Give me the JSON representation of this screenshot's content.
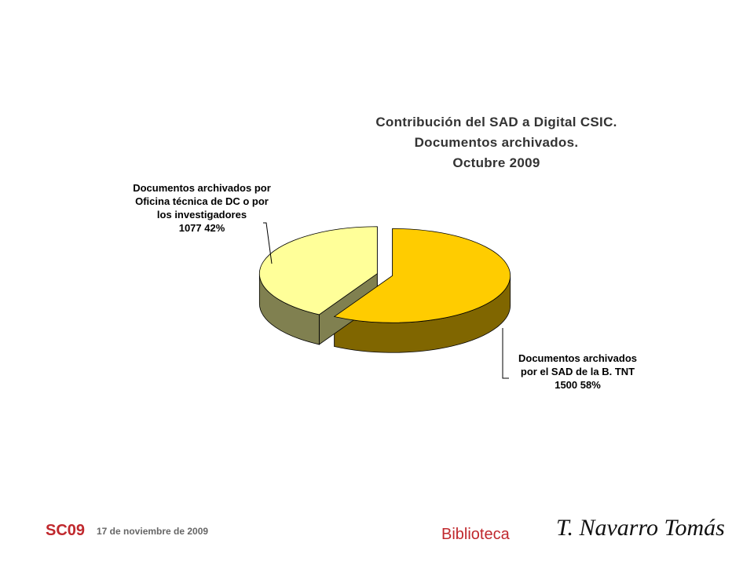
{
  "chart_data": {
    "type": "pie3d",
    "title": [
      "Contribución del SAD a Digital CSIC.",
      "Documentos archivados.",
      "Octubre 2009"
    ],
    "categories": [
      "Documentos archivados por el SAD de la B. TNT",
      "Documentos archivados por Oficina técnica de DC o por los investigadores"
    ],
    "values": [
      1500,
      1077
    ],
    "value_labels": [
      "1500 58%",
      "1077  42%"
    ],
    "colors": [
      "#FFCC00",
      "#FFFF99"
    ],
    "side_colors": [
      "#806600",
      "#808050"
    ]
  },
  "footer": {
    "code": "SC09",
    "date": "17 de noviembre de 2009",
    "department": "Biblioteca",
    "signature": "T. Navarro Tomás"
  }
}
